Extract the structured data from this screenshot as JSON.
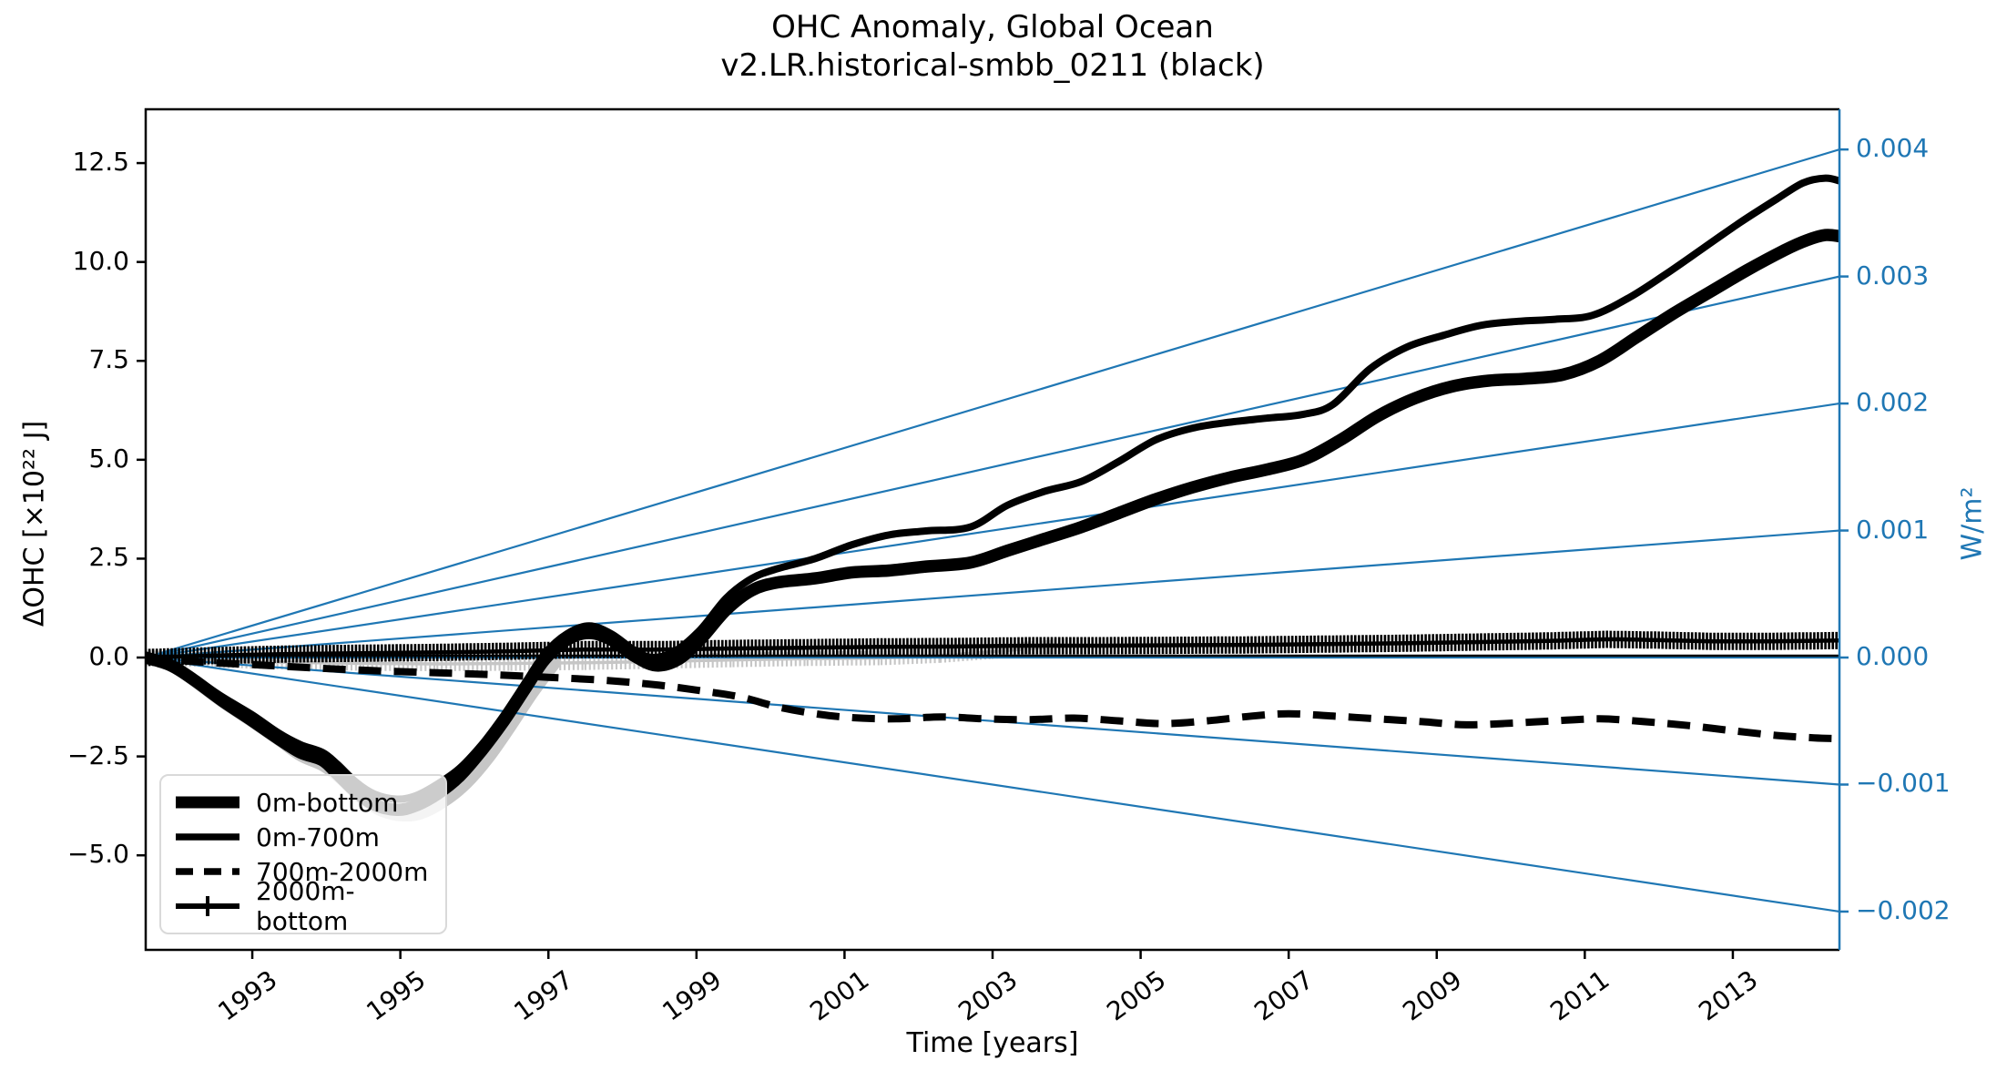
{
  "title": {
    "line1": "OHC Anomaly, Global Ocean",
    "line2": "v2.LR.historical-smbb_0211 (black)"
  },
  "axes": {
    "x_label": "Time [years]",
    "y_left_label": "ΔOHC [×10²² J]",
    "y_right_label": "W/m²",
    "x_ticks": [
      {
        "value": 1993,
        "label": "1993"
      },
      {
        "value": 1995,
        "label": "1995"
      },
      {
        "value": 1997,
        "label": "1997"
      },
      {
        "value": 1999,
        "label": "1999"
      },
      {
        "value": 2001,
        "label": "2001"
      },
      {
        "value": 2003,
        "label": "2003"
      },
      {
        "value": 2005,
        "label": "2005"
      },
      {
        "value": 2007,
        "label": "2007"
      },
      {
        "value": 2009,
        "label": "2009"
      },
      {
        "value": 2011,
        "label": "2011"
      },
      {
        "value": 2013,
        "label": "2013"
      }
    ],
    "y_left_ticks": [
      {
        "value": 12.5,
        "label": "12.5"
      },
      {
        "value": 10.0,
        "label": "10.0"
      },
      {
        "value": 7.5,
        "label": "7.5"
      },
      {
        "value": 5.0,
        "label": "5.0"
      },
      {
        "value": 2.5,
        "label": "2.5"
      },
      {
        "value": 0.0,
        "label": "0.0"
      },
      {
        "value": -2.5,
        "label": "−2.5"
      },
      {
        "value": -5.0,
        "label": "−5.0"
      }
    ],
    "y_right_ticks": [
      {
        "value": 0.004,
        "label": "0.004"
      },
      {
        "value": 0.003,
        "label": "0.003"
      },
      {
        "value": 0.002,
        "label": "0.002"
      },
      {
        "value": 0.001,
        "label": "0.001"
      },
      {
        "value": 0.0,
        "label": "0.000"
      },
      {
        "value": -0.001,
        "label": "−0.001"
      },
      {
        "value": -0.002,
        "label": "−0.002"
      }
    ]
  },
  "colors": {
    "accent_blue": "#1f77b4",
    "curve_black": "#000000",
    "ensemble_gray": "#c6c6c6",
    "legend_border": "#d9d9d9"
  },
  "legend": {
    "items": [
      {
        "label": "0m-bottom",
        "style": "thick-solid"
      },
      {
        "label": "0m-700m",
        "style": "solid"
      },
      {
        "label": "700m-2000m",
        "style": "dashed"
      },
      {
        "label": "2000m-bottom",
        "style": "solid-plus"
      }
    ]
  },
  "chart_data": {
    "type": "line",
    "title": "OHC Anomaly, Global Ocean",
    "subtitle": "v2.LR.historical-smbb_0211 (black)",
    "xlabel": "Time [years]",
    "ylabel_left": "ΔOHC [×10²² J]",
    "ylabel_right": "W/m²",
    "x_range": [
      1991.56,
      2014.44
    ],
    "y_left_range": [
      -7.39,
      13.86
    ],
    "grid": false,
    "legend_position": "lower left",
    "wm2_reference_lines": {
      "values": [
        0.004,
        0.003,
        0.002,
        0.001,
        0.0,
        -0.001,
        -0.002
      ],
      "origin_year": 1991.56,
      "origin_value": 0.0,
      "ohc_units_per_0p001_wm2": 3.211
    },
    "series": [
      {
        "name": "0m-bottom (gray members)",
        "group": "gray",
        "line": "thick",
        "points": [
          [
            1991.56,
            0
          ],
          [
            1991.9,
            -0.22
          ],
          [
            1992.2,
            -0.6
          ],
          [
            1992.6,
            -1.15
          ],
          [
            1993.0,
            -1.65
          ],
          [
            1993.35,
            -2.1
          ],
          [
            1993.65,
            -2.5
          ],
          [
            1993.95,
            -2.75
          ],
          [
            1994.2,
            -3.1
          ],
          [
            1994.45,
            -3.55
          ],
          [
            1994.75,
            -3.9
          ],
          [
            1995.05,
            -4.02
          ],
          [
            1995.3,
            -3.95
          ],
          [
            1995.6,
            -3.65
          ],
          [
            1995.9,
            -3.2
          ],
          [
            1996.2,
            -2.55
          ],
          [
            1996.5,
            -1.75
          ],
          [
            1996.8,
            -0.9
          ],
          [
            1997.1,
            -0.15
          ]
        ]
      },
      {
        "name": "0m-700m (gray members)",
        "group": "gray",
        "line": "solid",
        "points": [
          [
            1991.56,
            0
          ],
          [
            1991.9,
            -0.2
          ],
          [
            1992.2,
            -0.55
          ],
          [
            1992.6,
            -1.05
          ],
          [
            1993.0,
            -1.5
          ],
          [
            1993.35,
            -2.0
          ],
          [
            1993.65,
            -2.35
          ],
          [
            1993.95,
            -2.55
          ],
          [
            1994.2,
            -2.9
          ],
          [
            1994.45,
            -3.35
          ],
          [
            1994.75,
            -3.65
          ],
          [
            1995.05,
            -3.78
          ],
          [
            1995.3,
            -3.7
          ],
          [
            1995.6,
            -3.4
          ],
          [
            1995.9,
            -3.0
          ],
          [
            1996.2,
            -2.4
          ],
          [
            1996.5,
            -1.6
          ],
          [
            1996.8,
            -0.75
          ],
          [
            1997.1,
            0.0
          ]
        ]
      },
      {
        "name": "2000m-bottom (gray members)",
        "group": "gray",
        "line": "plus",
        "points": [
          [
            1991.56,
            0
          ],
          [
            1992.5,
            -0.07
          ],
          [
            1993.5,
            -0.12
          ],
          [
            1994.5,
            -0.15
          ],
          [
            1995.5,
            -0.16
          ],
          [
            1996.5,
            -0.15
          ],
          [
            1997.5,
            -0.13
          ],
          [
            1998.5,
            -0.1
          ],
          [
            1999.5,
            -0.06
          ],
          [
            2000.5,
            -0.03
          ],
          [
            2001.5,
            -0.01
          ],
          [
            2002.3,
            0.05
          ],
          [
            2003.0,
            0.15
          ],
          [
            2003.6,
            0.24
          ],
          [
            2004.0,
            0.29
          ]
        ]
      },
      {
        "name": "700m-2000m",
        "group": "black",
        "line": "dashed",
        "points": [
          [
            1991.56,
            0
          ],
          [
            1992.2,
            -0.1
          ],
          [
            1993.0,
            -0.18
          ],
          [
            1993.8,
            -0.26
          ],
          [
            1994.6,
            -0.33
          ],
          [
            1995.4,
            -0.38
          ],
          [
            1996.2,
            -0.43
          ],
          [
            1997.0,
            -0.5
          ],
          [
            1997.8,
            -0.58
          ],
          [
            1998.5,
            -0.7
          ],
          [
            1999.1,
            -0.85
          ],
          [
            1999.6,
            -1.0
          ],
          [
            2000.1,
            -1.25
          ],
          [
            2000.6,
            -1.42
          ],
          [
            2001.1,
            -1.52
          ],
          [
            2001.7,
            -1.55
          ],
          [
            2002.3,
            -1.5
          ],
          [
            2002.9,
            -1.55
          ],
          [
            2003.5,
            -1.57
          ],
          [
            2004.1,
            -1.53
          ],
          [
            2004.7,
            -1.6
          ],
          [
            2005.3,
            -1.67
          ],
          [
            2005.9,
            -1.6
          ],
          [
            2006.5,
            -1.48
          ],
          [
            2007.0,
            -1.42
          ],
          [
            2007.6,
            -1.48
          ],
          [
            2008.2,
            -1.55
          ],
          [
            2008.8,
            -1.62
          ],
          [
            2009.4,
            -1.7
          ],
          [
            2010.0,
            -1.66
          ],
          [
            2010.6,
            -1.6
          ],
          [
            2011.2,
            -1.55
          ],
          [
            2011.8,
            -1.62
          ],
          [
            2012.4,
            -1.72
          ],
          [
            2013.0,
            -1.85
          ],
          [
            2013.6,
            -1.97
          ],
          [
            2014.1,
            -2.03
          ],
          [
            2014.44,
            -2.05
          ]
        ]
      },
      {
        "name": "2000m-bottom",
        "group": "black",
        "line": "plus",
        "points": [
          [
            1991.56,
            0
          ],
          [
            1992.5,
            0.05
          ],
          [
            1993.5,
            0.09
          ],
          [
            1994.5,
            0.11
          ],
          [
            1995.5,
            0.13
          ],
          [
            1996.5,
            0.16
          ],
          [
            1997.5,
            0.2
          ],
          [
            1998.5,
            0.2
          ],
          [
            1999.5,
            0.23
          ],
          [
            2000.5,
            0.25
          ],
          [
            2001.5,
            0.27
          ],
          [
            2002.5,
            0.28
          ],
          [
            2003.5,
            0.3
          ],
          [
            2004.5,
            0.3
          ],
          [
            2005.5,
            0.31
          ],
          [
            2006.5,
            0.32
          ],
          [
            2007.5,
            0.34
          ],
          [
            2008.5,
            0.36
          ],
          [
            2009.5,
            0.39
          ],
          [
            2010.5,
            0.42
          ],
          [
            2011.3,
            0.46
          ],
          [
            2012.0,
            0.44
          ],
          [
            2012.7,
            0.41
          ],
          [
            2013.5,
            0.41
          ],
          [
            2014.44,
            0.43
          ]
        ]
      },
      {
        "name": "0m-700m",
        "group": "black",
        "line": "solid",
        "points": [
          [
            1991.56,
            0
          ],
          [
            1991.9,
            -0.18
          ],
          [
            1992.2,
            -0.5
          ],
          [
            1992.6,
            -1.0
          ],
          [
            1993.0,
            -1.45
          ],
          [
            1993.35,
            -1.9
          ],
          [
            1993.65,
            -2.2
          ],
          [
            1993.95,
            -2.4
          ],
          [
            1994.15,
            -2.7
          ],
          [
            1994.4,
            -3.15
          ],
          [
            1994.65,
            -3.45
          ],
          [
            1994.95,
            -3.58
          ],
          [
            1995.2,
            -3.5
          ],
          [
            1995.5,
            -3.2
          ],
          [
            1995.8,
            -2.8
          ],
          [
            1996.1,
            -2.2
          ],
          [
            1996.4,
            -1.45
          ],
          [
            1996.7,
            -0.6
          ],
          [
            1996.95,
            0.1
          ],
          [
            1997.25,
            0.6
          ],
          [
            1997.55,
            0.8
          ],
          [
            1997.85,
            0.6
          ],
          [
            1998.15,
            0.2
          ],
          [
            1998.4,
            0.0
          ],
          [
            1998.7,
            0.15
          ],
          [
            1999.05,
            0.7
          ],
          [
            1999.4,
            1.5
          ],
          [
            1999.75,
            2.0
          ],
          [
            2000.1,
            2.25
          ],
          [
            2000.6,
            2.5
          ],
          [
            2001.1,
            2.85
          ],
          [
            2001.6,
            3.1
          ],
          [
            2002.1,
            3.2
          ],
          [
            2002.7,
            3.3
          ],
          [
            2003.2,
            3.85
          ],
          [
            2003.7,
            4.2
          ],
          [
            2004.2,
            4.45
          ],
          [
            2004.7,
            4.95
          ],
          [
            2005.2,
            5.5
          ],
          [
            2005.7,
            5.8
          ],
          [
            2006.2,
            5.95
          ],
          [
            2006.7,
            6.05
          ],
          [
            2007.2,
            6.15
          ],
          [
            2007.6,
            6.4
          ],
          [
            2008.1,
            7.3
          ],
          [
            2008.6,
            7.85
          ],
          [
            2009.1,
            8.15
          ],
          [
            2009.6,
            8.4
          ],
          [
            2010.1,
            8.5
          ],
          [
            2010.6,
            8.55
          ],
          [
            2011.1,
            8.65
          ],
          [
            2011.6,
            9.1
          ],
          [
            2012.1,
            9.7
          ],
          [
            2012.6,
            10.35
          ],
          [
            2013.1,
            11.0
          ],
          [
            2013.6,
            11.6
          ],
          [
            2013.95,
            12.0
          ],
          [
            2014.25,
            12.12
          ],
          [
            2014.44,
            12.05
          ]
        ]
      },
      {
        "name": "0m-bottom",
        "group": "black",
        "line": "thick",
        "points": [
          [
            1991.56,
            0
          ],
          [
            1991.9,
            -0.2
          ],
          [
            1992.2,
            -0.55
          ],
          [
            1992.6,
            -1.1
          ],
          [
            1993.0,
            -1.6
          ],
          [
            1993.35,
            -2.05
          ],
          [
            1993.65,
            -2.4
          ],
          [
            1993.95,
            -2.6
          ],
          [
            1994.15,
            -2.95
          ],
          [
            1994.4,
            -3.4
          ],
          [
            1994.65,
            -3.72
          ],
          [
            1994.95,
            -3.85
          ],
          [
            1995.2,
            -3.75
          ],
          [
            1995.5,
            -3.45
          ],
          [
            1995.8,
            -3.0
          ],
          [
            1996.1,
            -2.35
          ],
          [
            1996.4,
            -1.6
          ],
          [
            1996.7,
            -0.75
          ],
          [
            1996.95,
            -0.05
          ],
          [
            1997.25,
            0.45
          ],
          [
            1997.55,
            0.62
          ],
          [
            1997.85,
            0.45
          ],
          [
            1998.15,
            0.05
          ],
          [
            1998.45,
            -0.2
          ],
          [
            1998.75,
            -0.05
          ],
          [
            1999.05,
            0.45
          ],
          [
            1999.4,
            1.2
          ],
          [
            1999.75,
            1.7
          ],
          [
            2000.1,
            1.9
          ],
          [
            2000.6,
            2.0
          ],
          [
            2001.1,
            2.15
          ],
          [
            2001.6,
            2.2
          ],
          [
            2002.1,
            2.3
          ],
          [
            2002.7,
            2.4
          ],
          [
            2003.2,
            2.7
          ],
          [
            2003.7,
            3.0
          ],
          [
            2004.2,
            3.3
          ],
          [
            2004.7,
            3.65
          ],
          [
            2005.2,
            4.0
          ],
          [
            2005.7,
            4.3
          ],
          [
            2006.2,
            4.55
          ],
          [
            2006.7,
            4.75
          ],
          [
            2007.2,
            5.0
          ],
          [
            2007.7,
            5.5
          ],
          [
            2008.2,
            6.1
          ],
          [
            2008.7,
            6.55
          ],
          [
            2009.2,
            6.85
          ],
          [
            2009.7,
            7.0
          ],
          [
            2010.2,
            7.05
          ],
          [
            2010.7,
            7.15
          ],
          [
            2011.2,
            7.5
          ],
          [
            2011.7,
            8.1
          ],
          [
            2012.2,
            8.7
          ],
          [
            2012.7,
            9.25
          ],
          [
            2013.2,
            9.8
          ],
          [
            2013.7,
            10.3
          ],
          [
            2014.0,
            10.55
          ],
          [
            2014.25,
            10.68
          ],
          [
            2014.44,
            10.65
          ]
        ]
      }
    ]
  }
}
